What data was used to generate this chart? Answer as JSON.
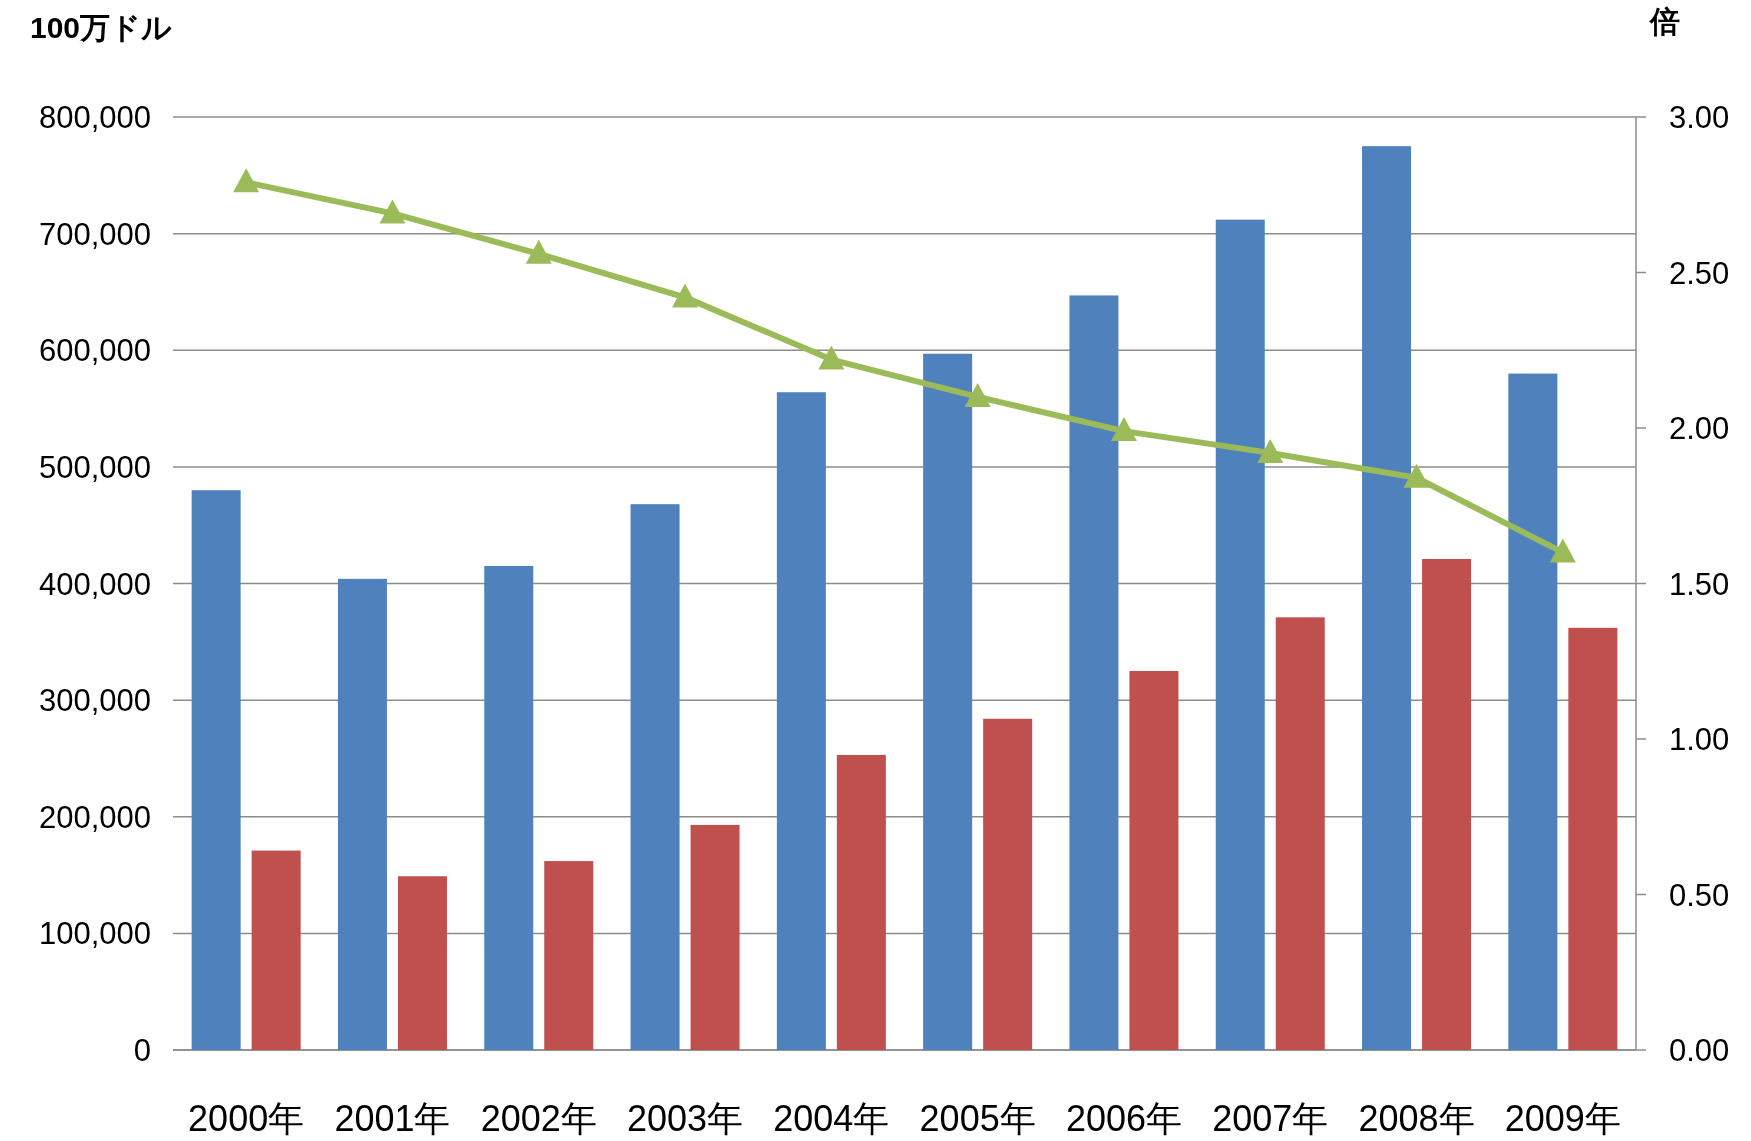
{
  "chart_data": {
    "type": "bar",
    "ylabel": "100万ドル",
    "y2label": "倍",
    "categories": [
      "2000年",
      "2001年",
      "2002年",
      "2003年",
      "2004年",
      "2005年",
      "2006年",
      "2007年",
      "2008年",
      "2009年"
    ],
    "series": [
      {
        "color": "#4f81bd",
        "values": [
          480000,
          404000,
          415000,
          468000,
          564000,
          597000,
          647000,
          712000,
          775000,
          580000
        ]
      },
      {
        "color": "#c0504d",
        "values": [
          171000,
          149000,
          162000,
          193000,
          253000,
          284000,
          325000,
          371000,
          421000,
          362000
        ]
      },
      {
        "type": "line",
        "axis": "y2",
        "color": "#9bbb59",
        "marker": "triangle",
        "line_style": "solid",
        "values": [
          2.79,
          2.69,
          2.56,
          2.42,
          2.22,
          2.1,
          1.99,
          1.92,
          1.84,
          1.6
        ]
      }
    ],
    "ylim": [
      0,
      800000
    ],
    "yticks": [
      {
        "value": 0,
        "label": "0"
      },
      {
        "value": 100000,
        "label": "100,000"
      },
      {
        "value": 200000,
        "label": "200,000"
      },
      {
        "value": 300000,
        "label": "300,000"
      },
      {
        "value": 400000,
        "label": "400,000"
      },
      {
        "value": 500000,
        "label": "500,000"
      },
      {
        "value": 600000,
        "label": "600,000"
      },
      {
        "value": 700000,
        "label": "700,000"
      },
      {
        "value": 800000,
        "label": "800,000"
      }
    ],
    "y2lim": [
      0,
      3
    ],
    "y2ticks": [
      {
        "value": 0,
        "label": "0.00"
      },
      {
        "value": 0.5,
        "label": "0.50"
      },
      {
        "value": 1,
        "label": "1.00"
      },
      {
        "value": 1.5,
        "label": "1.50"
      },
      {
        "value": 2,
        "label": "2.00"
      },
      {
        "value": 2.5,
        "label": "2.50"
      },
      {
        "value": 3,
        "label": "3.00"
      }
    ],
    "grid": "y"
  }
}
